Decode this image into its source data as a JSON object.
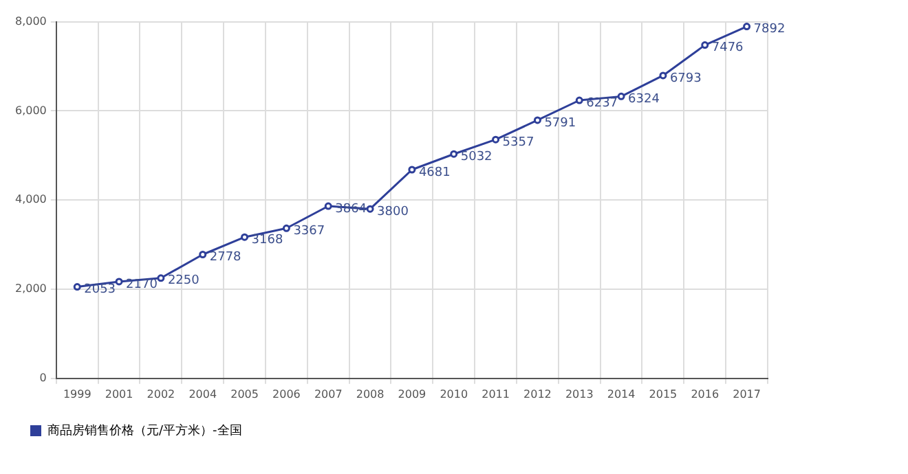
{
  "chart_data": {
    "type": "line",
    "categories": [
      "1999",
      "2001",
      "2002",
      "2004",
      "2005",
      "2006",
      "2007",
      "2008",
      "2009",
      "2010",
      "2011",
      "2012",
      "2013",
      "2014",
      "2015",
      "2016",
      "2017"
    ],
    "series": [
      {
        "name": "商品房销售价格（元/平方米）-全国",
        "color": "#2e3f99",
        "values": [
          2053,
          2170,
          2250,
          2778,
          3168,
          3367,
          3864,
          3800,
          4681,
          5032,
          5357,
          5791,
          6237,
          6324,
          6793,
          7476,
          7892
        ]
      }
    ],
    "ylim": [
      0,
      8000
    ],
    "yticks": [
      0,
      {
        "value": 2000,
        "label": "2,000"
      },
      {
        "value": 4000,
        "label": "4,000"
      },
      {
        "value": 6000,
        "label": "6,000"
      },
      {
        "value": 8000,
        "label": "8,000"
      }
    ],
    "grid": true,
    "legend": "bottom left",
    "marker": "circle",
    "line_style": "solid",
    "data_labels": true
  }
}
